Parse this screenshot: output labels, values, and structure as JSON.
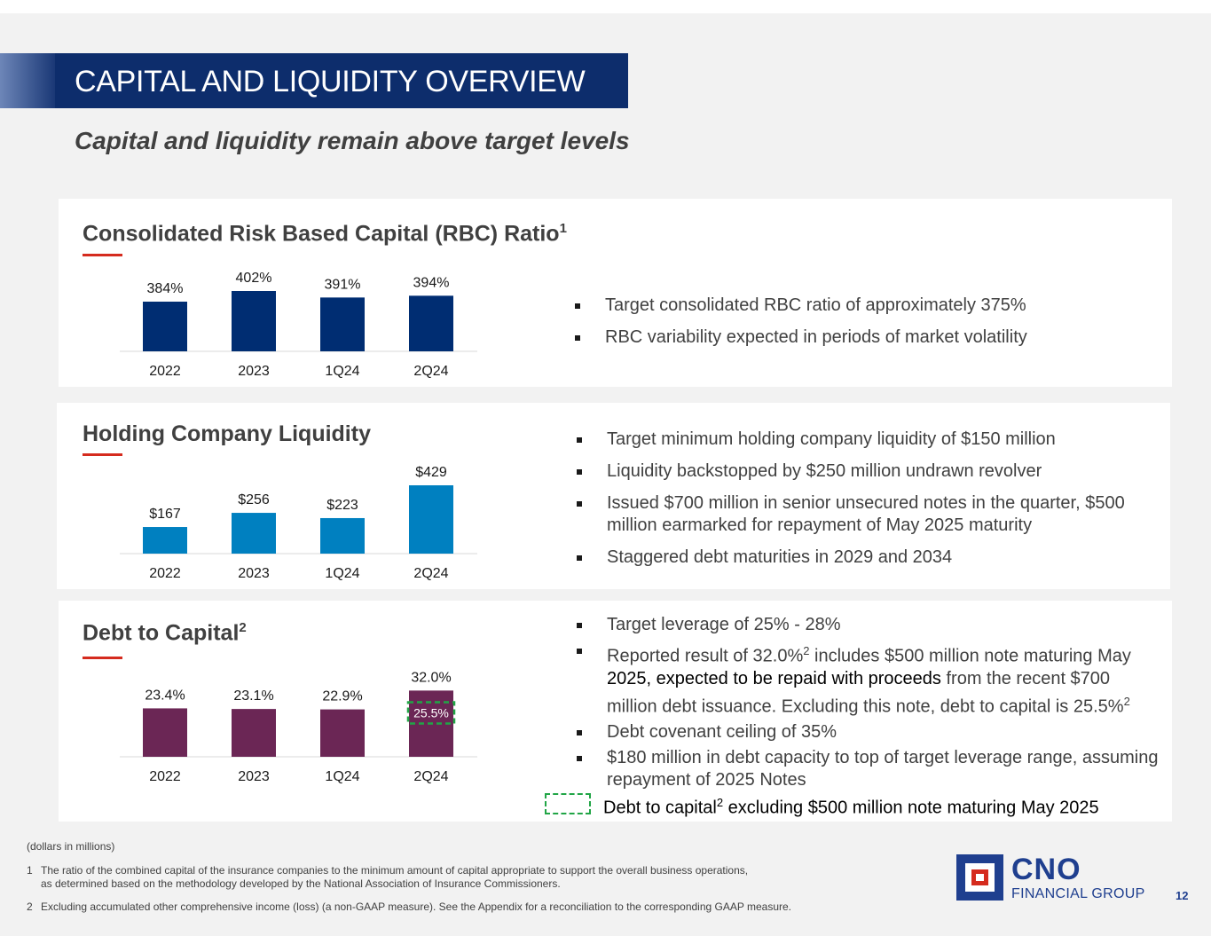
{
  "title": "CAPITAL AND LIQUIDITY OVERVIEW",
  "subtitle": "Capital and liquidity remain above target levels",
  "colors": {
    "rbc_bar": "#002d72",
    "liquidity_bar": "#0080c0",
    "debt_bar": "#6b2655",
    "highlight_dash": "#21a546",
    "accent_red": "#d52b1e",
    "title_band": "#0d2d6c"
  },
  "rbc": {
    "title": "Consolidated Risk Based Capital (RBC) Ratio",
    "title_sup": "1",
    "bullets": [
      "Target consolidated RBC ratio of approximately 375%",
      "RBC variability expected in periods of market volatility"
    ]
  },
  "liquidity": {
    "title": "Holding Company Liquidity",
    "bullets": [
      "Target minimum holding company liquidity of $150 million",
      "Liquidity backstopped by $250 million undrawn revolver",
      "Issued $700 million in senior unsecured notes in the quarter, $500 million earmarked for repayment of May 2025 maturity",
      "Staggered debt maturities in 2029 and 2034"
    ]
  },
  "debt": {
    "title": "Debt to Capital",
    "title_sup": "2",
    "bullets": {
      "b1": "Target leverage of 25% - 28%",
      "b2_pre": "Reported result of 32.0%",
      "b2_sup": "2",
      "b2_mid": " includes $500 million note maturing May ",
      "b2_black": "2025, expected to be repaid with proceeds",
      "b2_post": " from the recent $700 million debt issuance.  Excluding this note, debt to capital is 25.5%",
      "b2_sup2": "2",
      "b3": "Debt covenant ceiling of 35%",
      "b4": "$180 million in debt capacity to top of target leverage range, assuming repayment of 2025 Notes"
    },
    "legend_pre": "Debt to capital",
    "legend_sup": "2",
    "legend_post": " excluding $500 million note maturing May 2025"
  },
  "chart_data": [
    {
      "id": "rbc",
      "type": "bar",
      "title": "Consolidated Risk Based Capital (RBC) Ratio",
      "categories": [
        "2022",
        "2023",
        "1Q24",
        "2Q24"
      ],
      "values": [
        384,
        402,
        391,
        394
      ],
      "value_labels": [
        "384%",
        "402%",
        "391%",
        "394%"
      ],
      "unit": "%",
      "ylim": [
        300,
        402
      ]
    },
    {
      "id": "liquidity",
      "type": "bar",
      "title": "Holding Company Liquidity",
      "categories": [
        "2022",
        "2023",
        "1Q24",
        "2Q24"
      ],
      "values": [
        167,
        256,
        223,
        429
      ],
      "value_labels": [
        "$167",
        "$256",
        "$223",
        "$429"
      ],
      "unit": "$ millions",
      "ylim": [
        0,
        429
      ]
    },
    {
      "id": "debt",
      "type": "bar",
      "title": "Debt to Capital",
      "categories": [
        "2022",
        "2023",
        "1Q24",
        "2Q24"
      ],
      "values": [
        23.4,
        23.1,
        22.9,
        32.0
      ],
      "value_labels": [
        "23.4%",
        "23.1%",
        "22.9%",
        "32.0%"
      ],
      "excluding_note_value": 25.5,
      "excluding_note_label": "25.5%",
      "unit": "%",
      "ylim": [
        0,
        34.3
      ]
    }
  ],
  "footer": {
    "units_note": "(dollars in millions)",
    "footnotes": [
      {
        "num": "1",
        "line1": "The ratio of the combined capital of the insurance companies to the minimum amount of capital appropriate to support the overall business operations,",
        "line2": "as determined based on the methodology developed by the National Association of Insurance Commissioners."
      },
      {
        "num": "2",
        "line1": "Excluding accumulated other comprehensive income (loss) (a non-GAAP measure). See the Appendix for a reconciliation to the corresponding GAAP measure."
      }
    ]
  },
  "logo": {
    "name": "CNO",
    "tagline": "FINANCIAL GROUP"
  },
  "page_number": "12"
}
